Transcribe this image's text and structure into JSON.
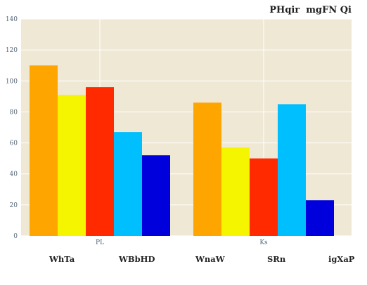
{
  "title": "PHqir  mgFN Qi",
  "chart_data": {
    "type": "bar",
    "title": "PHqir  mgFN Qi",
    "categories": [
      "PL",
      "Ks"
    ],
    "series": [
      {
        "name": "WhTa",
        "values": [
          110,
          86
        ],
        "color": "#ffa500"
      },
      {
        "name": "WBbHD",
        "values": [
          91,
          57
        ],
        "color": "#f5f500"
      },
      {
        "name": "WnaW",
        "values": [
          96,
          50
        ],
        "color": "#ff2a00"
      },
      {
        "name": "SRn",
        "values": [
          67,
          85
        ],
        "color": "#00bfff"
      },
      {
        "name": "igXaP",
        "values": [
          52,
          23
        ],
        "color": "#0000dc"
      }
    ],
    "ylim": [
      0,
      140
    ],
    "yticks": [
      0,
      20,
      40,
      60,
      80,
      100,
      120,
      140
    ],
    "grid": true,
    "legend_position": "bottom",
    "plot_background": "#efe8d5"
  }
}
